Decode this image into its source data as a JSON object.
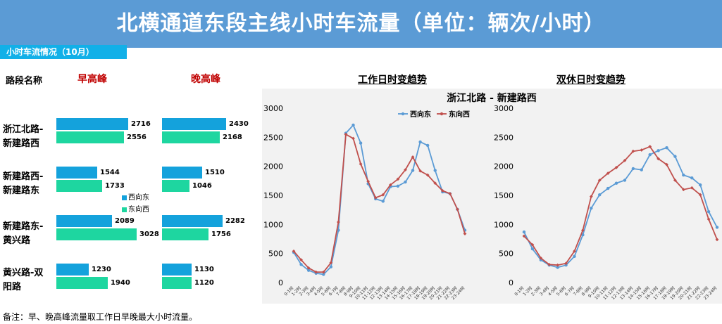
{
  "title": "北横通道东段主线小时车流量（单位：辆次/小时）",
  "subtitle": "小时车流情况（10月）",
  "headers": {
    "road": "路段名称",
    "am_peak": "早高峰",
    "pm_peak": "晚高峰"
  },
  "legend": {
    "east": "西向东",
    "west": "东向西"
  },
  "colors": {
    "east_bar": "#14a2dc",
    "west_bar": "#1ed6a0",
    "east_line": "#5b9bd5",
    "west_line": "#c0504d",
    "title_bg": "#5b9bd5",
    "accent_red": "#c00000"
  },
  "segments": [
    {
      "name_line1": "浙江北路-",
      "name_line2": "新建路西",
      "am": {
        "east": 2716,
        "west": 2556
      },
      "pm": {
        "east": 2430,
        "west": 2168
      }
    },
    {
      "name_line1": "新建路西-",
      "name_line2": "新建路东",
      "am": {
        "east": 1544,
        "west": 1733
      },
      "pm": {
        "east": 1510,
        "west": 1046
      }
    },
    {
      "name_line1": "新建路东-",
      "name_line2": "黄兴路",
      "am": {
        "east": 2089,
        "west": 3028
      },
      "pm": {
        "east": 2282,
        "west": 1756
      }
    },
    {
      "name_line1": "黄兴路-双",
      "name_line2": "阳路",
      "am": {
        "east": 1230,
        "west": 1940
      },
      "pm": {
        "east": 1130,
        "west": 1120
      }
    }
  ],
  "chart_section_label": "浙江北路  -  新建路西",
  "footnote": "备注：早、晚高峰流量取工作日早晚最大小时流量。",
  "chart_data": [
    {
      "type": "bar",
      "categories": [
        "浙江北路-新建路西",
        "新建路西-新建路东",
        "新建路东-黄兴路",
        "黄兴路-双阳路"
      ],
      "title": "早高峰",
      "series": [
        {
          "name": "西向东",
          "values": [
            2716,
            1544,
            2089,
            1230
          ]
        },
        {
          "name": "东向西",
          "values": [
            2556,
            1733,
            3028,
            1940
          ]
        }
      ]
    },
    {
      "type": "bar",
      "categories": [
        "浙江北路-新建路西",
        "新建路西-新建路东",
        "新建路东-黄兴路",
        "黄兴路-双阳路"
      ],
      "title": "晚高峰",
      "series": [
        {
          "name": "西向东",
          "values": [
            2430,
            1510,
            2282,
            1130
          ]
        },
        {
          "name": "东向西",
          "values": [
            2168,
            1046,
            1756,
            1120
          ]
        }
      ]
    },
    {
      "type": "line",
      "title": "工作日时变趋势",
      "x": [
        "0-1时",
        "1-2时",
        "2-3时",
        "3-4时",
        "4-5时",
        "5-6时",
        "6-7时",
        "7-8时",
        "8-9时",
        "9-10时",
        "10-11时",
        "11-12时",
        "12-13时",
        "13-14时",
        "14-15时",
        "15-16时",
        "16-17时",
        "17-18时",
        "18-19时",
        "19-20时",
        "20-21时",
        "21-22时",
        "22-23时",
        "23-24时"
      ],
      "ylim": [
        0,
        3000
      ],
      "yticks": [
        0,
        500,
        1000,
        1500,
        2000,
        2500,
        3000
      ],
      "legend_position": "top-right",
      "series": [
        {
          "name": "西向东",
          "values": [
            520,
            310,
            210,
            160,
            140,
            270,
            900,
            2570,
            2710,
            2400,
            1700,
            1440,
            1400,
            1650,
            1660,
            1730,
            1930,
            2420,
            2360,
            1930,
            1560,
            1530,
            1260,
            900
          ]
        },
        {
          "name": "东向西",
          "values": [
            540,
            390,
            250,
            180,
            180,
            340,
            1040,
            2550,
            2480,
            2040,
            1740,
            1460,
            1510,
            1680,
            1780,
            1940,
            2160,
            1920,
            1850,
            1710,
            1580,
            1530,
            1260,
            840
          ]
        }
      ]
    },
    {
      "type": "line",
      "title": "双休日时变趋势",
      "x": [
        "0-1时",
        "1-2时",
        "2-3时",
        "3-4时",
        "4-5时",
        "5-6时",
        "6-7时",
        "7-8时",
        "8-9时",
        "9-10时",
        "10-11时",
        "11-12时",
        "12-13时",
        "13-14时",
        "14-15时",
        "15-16时",
        "16-17时",
        "17-18时",
        "18-19时",
        "19-20时",
        "20-21时",
        "21-22时",
        "22-23时",
        "23-24时"
      ],
      "ylim": [
        0,
        3000
      ],
      "yticks": [
        0,
        500,
        1000,
        1500,
        2000,
        2500,
        3000
      ],
      "series": [
        {
          "name": "西向东",
          "values": [
            870,
            580,
            390,
            300,
            260,
            300,
            450,
            820,
            1280,
            1510,
            1620,
            1710,
            1760,
            1960,
            1940,
            2200,
            2270,
            2320,
            2170,
            1850,
            1800,
            1680,
            1220,
            950
          ]
        },
        {
          "name": "东向西",
          "values": [
            800,
            650,
            420,
            310,
            300,
            330,
            540,
            900,
            1480,
            1760,
            1880,
            1980,
            2100,
            2260,
            2280,
            2340,
            2130,
            2030,
            1760,
            1600,
            1630,
            1510,
            1090,
            740
          ]
        }
      ]
    }
  ]
}
